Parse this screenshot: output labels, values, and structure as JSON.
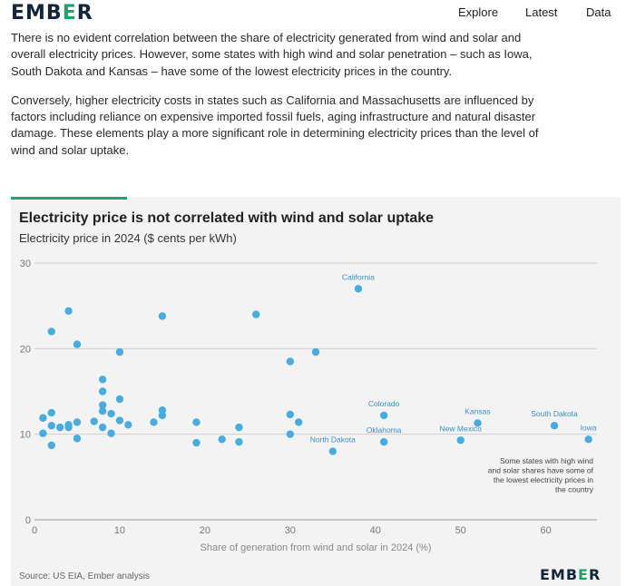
{
  "header": {
    "logo_text": "EMBER",
    "nav": [
      "Explore",
      "Latest",
      "Data"
    ]
  },
  "article": {
    "paragraphs": [
      "There is no evident correlation between the share of electricity generated from wind and solar and overall electricity prices. However, some states with high wind and solar penetration – such as Iowa, South Dakota and Kansas – have some of the lowest electricity prices in the country.",
      "Conversely, higher electricity costs in states such as California and Massachusetts are influenced by factors including reliance on expensive imported fossil fuels, aging infrastructure and natural disaster damage. These elements play a more significant role in determining electricity prices than the level of wind and solar uptake."
    ]
  },
  "chart_data": {
    "type": "scatter",
    "title": "Electricity price is not correlated with wind and solar uptake",
    "subtitle": "Electricity price in 2024 ($ cents per kWh)",
    "xlabel": "Share of generation from wind and solar in 2024 (%)",
    "ylabel": "",
    "xlim": [
      0,
      66
    ],
    "ylim": [
      0,
      30
    ],
    "x_ticks": [
      0,
      10,
      20,
      30,
      40,
      50,
      60
    ],
    "y_ticks": [
      0,
      10,
      20,
      30
    ],
    "grid": true,
    "point_color": "#49acde",
    "points": [
      {
        "x": 1,
        "y": 11.9,
        "label": ""
      },
      {
        "x": 1,
        "y": 10.1,
        "label": ""
      },
      {
        "x": 2,
        "y": 22.0,
        "label": ""
      },
      {
        "x": 2,
        "y": 12.5,
        "label": ""
      },
      {
        "x": 2,
        "y": 11.0,
        "label": ""
      },
      {
        "x": 2,
        "y": 8.7,
        "label": ""
      },
      {
        "x": 3,
        "y": 10.8,
        "label": ""
      },
      {
        "x": 4,
        "y": 24.4,
        "label": ""
      },
      {
        "x": 4,
        "y": 11.1,
        "label": ""
      },
      {
        "x": 4,
        "y": 10.8,
        "label": ""
      },
      {
        "x": 5,
        "y": 20.5,
        "label": ""
      },
      {
        "x": 5,
        "y": 11.4,
        "label": ""
      },
      {
        "x": 5,
        "y": 9.5,
        "label": ""
      },
      {
        "x": 7,
        "y": 11.5,
        "label": ""
      },
      {
        "x": 8,
        "y": 16.4,
        "label": ""
      },
      {
        "x": 8,
        "y": 15.0,
        "label": ""
      },
      {
        "x": 8,
        "y": 13.4,
        "label": ""
      },
      {
        "x": 8,
        "y": 12.7,
        "label": ""
      },
      {
        "x": 8,
        "y": 10.8,
        "label": ""
      },
      {
        "x": 9,
        "y": 12.4,
        "label": ""
      },
      {
        "x": 9,
        "y": 10.1,
        "label": ""
      },
      {
        "x": 10,
        "y": 19.6,
        "label": ""
      },
      {
        "x": 10,
        "y": 14.1,
        "label": ""
      },
      {
        "x": 10,
        "y": 11.6,
        "label": ""
      },
      {
        "x": 11,
        "y": 11.1,
        "label": ""
      },
      {
        "x": 14,
        "y": 11.4,
        "label": ""
      },
      {
        "x": 15,
        "y": 23.8,
        "label": ""
      },
      {
        "x": 15,
        "y": 12.8,
        "label": ""
      },
      {
        "x": 15,
        "y": 12.2,
        "label": ""
      },
      {
        "x": 19,
        "y": 11.4,
        "label": ""
      },
      {
        "x": 19,
        "y": 9.0,
        "label": ""
      },
      {
        "x": 22,
        "y": 9.4,
        "label": ""
      },
      {
        "x": 24,
        "y": 10.8,
        "label": ""
      },
      {
        "x": 24,
        "y": 9.1,
        "label": ""
      },
      {
        "x": 26,
        "y": 24.0,
        "label": ""
      },
      {
        "x": 30,
        "y": 18.5,
        "label": ""
      },
      {
        "x": 30,
        "y": 12.3,
        "label": ""
      },
      {
        "x": 30,
        "y": 10.0,
        "label": ""
      },
      {
        "x": 31,
        "y": 11.4,
        "label": ""
      },
      {
        "x": 33,
        "y": 19.6,
        "label": ""
      },
      {
        "x": 35,
        "y": 8.0,
        "label": "North Dakota"
      },
      {
        "x": 38,
        "y": 27.0,
        "label": "California"
      },
      {
        "x": 41,
        "y": 12.2,
        "label": "Colorado"
      },
      {
        "x": 41,
        "y": 9.1,
        "label": "Oklahoma"
      },
      {
        "x": 50,
        "y": 9.3,
        "label": "New Mexico"
      },
      {
        "x": 52,
        "y": 11.3,
        "label": "Kansas"
      },
      {
        "x": 61,
        "y": 11.0,
        "label": "South Dakota"
      },
      {
        "x": 65,
        "y": 9.4,
        "label": "Iowa"
      }
    ],
    "annotation": [
      "Some states with high wind",
      "and solar shares have some of",
      "the lowest electricity prices in",
      "the country"
    ],
    "source": "Source: US EIA, Ember analysis",
    "footer_logo": "EMBER"
  }
}
